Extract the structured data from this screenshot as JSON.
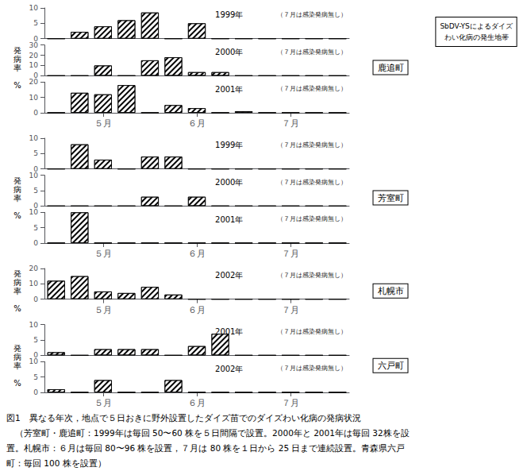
{
  "chart_data": [
    {
      "type": "bar",
      "location": "鹿追町",
      "ylabel": "発\n病\n率\n\n%",
      "annotations": [
        "1999年",
        "（７月は感染発病無し）"
      ],
      "categories": [
        null,
        null,
        "５月",
        null,
        null,
        null,
        "６月",
        null,
        null,
        null,
        "７月",
        null,
        null
      ],
      "values": [
        0,
        2.2,
        4.0,
        6.0,
        8.5,
        0,
        5.0,
        0,
        0,
        0,
        0,
        0,
        0
      ],
      "ylim": [
        0,
        10
      ],
      "yticks": [
        0,
        5,
        10
      ],
      "color": "white",
      "tick_labels": "y"
    },
    {
      "type": "bar",
      "annotations": [
        "2000年",
        "（７月は感染発病無し）"
      ],
      "categories": [
        null,
        null,
        "５月",
        null,
        null,
        null,
        "６月",
        null,
        null,
        null,
        "７月",
        null,
        null
      ],
      "values": [
        0,
        0,
        10.0,
        0,
        15.0,
        18.0,
        3.5,
        3.5,
        0,
        0,
        0,
        0,
        0
      ],
      "ylim": [
        0,
        30
      ],
      "yticks": [
        0,
        10,
        20,
        30
      ],
      "color": "white",
      "tick_labels": "y"
    },
    {
      "type": "bar",
      "annotations": [
        "2001年",
        "（７月は感染発病無し）"
      ],
      "categories": [
        null,
        null,
        "５月",
        null,
        null,
        null,
        "６月",
        null,
        null,
        null,
        "７月",
        null,
        null
      ],
      "values": [
        0,
        13.0,
        12.0,
        18.0,
        0,
        5.0,
        3.0,
        0,
        1.0,
        0,
        0,
        0,
        0
      ],
      "ylim": [
        0,
        20
      ],
      "yticks": [
        0,
        10,
        20
      ],
      "color": "white"
    },
    {
      "type": "bar",
      "location": "芳室町",
      "ylabel": "発\n病\n率\n\n%",
      "annotations": [
        "1999年",
        "（７月は感染発病無し）"
      ],
      "categories": [
        null,
        null,
        "５月",
        null,
        null,
        null,
        "６月",
        null,
        null,
        null,
        "７月",
        null,
        null
      ],
      "values": [
        0,
        8.0,
        3.0,
        0,
        4.0,
        4.0,
        0,
        0,
        0,
        0,
        0,
        0,
        0
      ],
      "ylim": [
        0,
        10
      ],
      "yticks": [
        0,
        5,
        10
      ],
      "color": "white",
      "tick_labels": "y"
    },
    {
      "type": "bar",
      "annotations": [
        "2000年",
        "（７月は感染発病無し）"
      ],
      "categories": [
        null,
        null,
        "５月",
        null,
        null,
        null,
        "６月",
        null,
        null,
        null,
        "７月",
        null,
        null
      ],
      "values": [
        0,
        0,
        0,
        0,
        3.0,
        0,
        3.0,
        0,
        0,
        0,
        0,
        0,
        0
      ],
      "ylim": [
        0,
        10
      ],
      "yticks": [
        0,
        5,
        10
      ],
      "color": "white",
      "tick_labels": "y"
    },
    {
      "type": "bar",
      "annotations": [
        "2001年",
        "（７月は感染発病無し）"
      ],
      "categories": [
        null,
        null,
        "５月",
        null,
        null,
        null,
        "６月",
        null,
        null,
        null,
        "７月",
        null,
        null
      ],
      "values": [
        0,
        10.0,
        0,
        0,
        0,
        0,
        0,
        0,
        0,
        0,
        0,
        0,
        0
      ],
      "ylim": [
        0,
        10
      ],
      "yticks": [
        0,
        5,
        10
      ],
      "color": "white"
    },
    {
      "type": "bar",
      "location": "札幌市",
      "ylabel": "発\n病\n率\n\n%",
      "annotations": [
        "2002年",
        "（７月は感染発病無し）"
      ],
      "categories": [
        null,
        null,
        "５月",
        null,
        null,
        null,
        "６月",
        null,
        null,
        null,
        "７月",
        null,
        null
      ],
      "values": [
        12.0,
        15.0,
        5.0,
        4.0,
        8.0,
        3.0,
        0,
        0,
        0,
        0,
        0,
        0,
        0
      ],
      "ylim": [
        0,
        20
      ],
      "yticks": [
        0,
        10,
        20
      ],
      "color": "white"
    },
    {
      "type": "bar",
      "location": "六戸町",
      "ylabel": "発\n病\n率\n\n%",
      "annotations": [
        "2001年",
        "（７月は感染発病無し）"
      ],
      "categories": [
        null,
        null,
        "５月",
        null,
        null,
        null,
        "６月",
        null,
        null,
        null,
        "７月",
        null,
        null
      ],
      "values": [
        1.0,
        0,
        2.0,
        2.0,
        2.0,
        0,
        3.0,
        7.0,
        0,
        0,
        0,
        0,
        0
      ],
      "ylim": [
        0,
        10
      ],
      "yticks": [
        0,
        5,
        10
      ],
      "color": "white",
      "tick_labels": "y"
    },
    {
      "type": "bar",
      "annotations": [
        "2002年",
        "（７月は感染発病無し）"
      ],
      "categories": [
        null,
        null,
        "５月",
        null,
        null,
        null,
        "６月",
        null,
        null,
        null,
        "７月",
        null,
        null
      ],
      "values": [
        1.0,
        0,
        4.0,
        0,
        0,
        4.0,
        0,
        0,
        0,
        0,
        0,
        0,
        0
      ],
      "ylim": [
        0,
        10
      ],
      "yticks": [
        0,
        5,
        10
      ],
      "color": "white"
    }
  ],
  "legend_text": "SbDV-YSによるダイズ\nわい化病の発生地帯",
  "caption": [
    "図1　異なる年次，地点で５日おきに野外設置したダイズ苗でのダイズわい化病の発病状況",
    "　（芳室町・鹿追町：1999年は毎回 50〜60 株を５日間隔で設置。2000年と 2001年は毎回 32株を設",
    "置。札幌市：６月は毎回 80〜96 株を設置，７月は 80 株を１日から 25 日まで連続設置。青森県六戸",
    "町：毎回 100 株を設置）"
  ]
}
